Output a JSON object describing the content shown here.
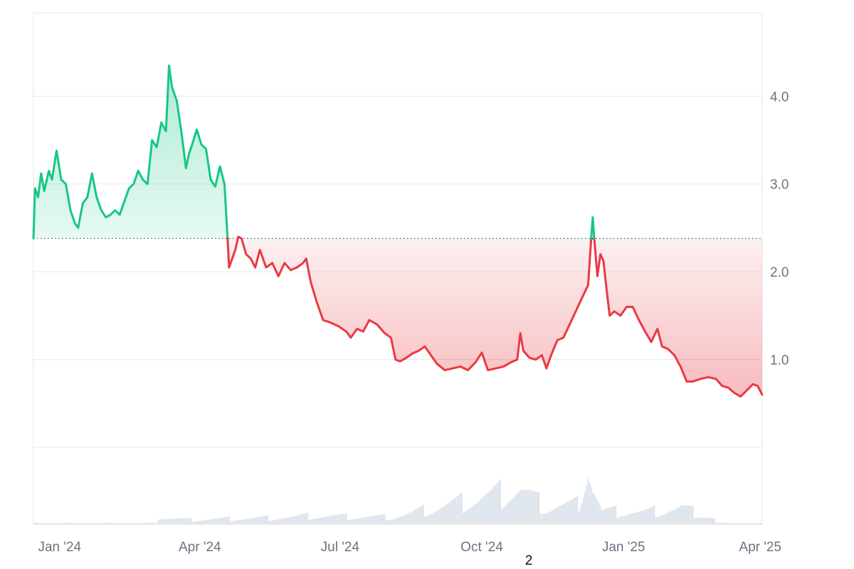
{
  "page_number": "2",
  "chart_data": {
    "type": "area",
    "baseline": 2.38,
    "ylim": [
      0,
      4.95
    ],
    "y_ticks": [
      {
        "value": 1.0,
        "label": "1.0"
      },
      {
        "value": 2.0,
        "label": "2.0"
      },
      {
        "value": 3.0,
        "label": "3.0"
      },
      {
        "value": 4.0,
        "label": "4.0"
      }
    ],
    "x_range": [
      "2023-12-15",
      "2025-04-01"
    ],
    "x_ticks": [
      {
        "date": "2024-01-01",
        "label": "Jan '24"
      },
      {
        "date": "2024-04-01",
        "label": "Apr '24"
      },
      {
        "date": "2024-07-01",
        "label": "Jul '24"
      },
      {
        "date": "2024-10-01",
        "label": "Oct '24"
      },
      {
        "date": "2025-01-01",
        "label": "Jan '25"
      },
      {
        "date": "2025-04-01",
        "label": "Apr '25"
      }
    ],
    "grid": true,
    "colors": {
      "up": "#16c784",
      "down": "#ea3943",
      "grid": "#e5e7eb",
      "volume": "#cbd5e1",
      "baseline": "#555555"
    },
    "series": [
      {
        "points": [
          [
            "2023-12-15",
            2.38
          ],
          [
            "2023-12-16",
            2.95
          ],
          [
            "2023-12-18",
            2.85
          ],
          [
            "2023-12-20",
            3.12
          ],
          [
            "2023-12-22",
            2.92
          ],
          [
            "2023-12-25",
            3.15
          ],
          [
            "2023-12-27",
            3.05
          ],
          [
            "2023-12-30",
            3.38
          ],
          [
            "2024-01-02",
            3.05
          ],
          [
            "2024-01-05",
            3.0
          ],
          [
            "2024-01-08",
            2.7
          ],
          [
            "2024-01-11",
            2.55
          ],
          [
            "2024-01-13",
            2.5
          ],
          [
            "2024-01-16",
            2.78
          ],
          [
            "2024-01-19",
            2.85
          ],
          [
            "2024-01-22",
            3.12
          ],
          [
            "2024-01-25",
            2.85
          ],
          [
            "2024-01-28",
            2.7
          ],
          [
            "2024-01-31",
            2.62
          ],
          [
            "2024-02-03",
            2.65
          ],
          [
            "2024-02-06",
            2.7
          ],
          [
            "2024-02-09",
            2.65
          ],
          [
            "2024-02-12",
            2.8
          ],
          [
            "2024-02-15",
            2.95
          ],
          [
            "2024-02-18",
            3.0
          ],
          [
            "2024-02-21",
            3.15
          ],
          [
            "2024-02-24",
            3.05
          ],
          [
            "2024-02-27",
            3.0
          ],
          [
            "2024-03-01",
            3.5
          ],
          [
            "2024-03-04",
            3.42
          ],
          [
            "2024-03-07",
            3.7
          ],
          [
            "2024-03-10",
            3.6
          ],
          [
            "2024-03-12",
            4.35
          ],
          [
            "2024-03-14",
            4.1
          ],
          [
            "2024-03-17",
            3.95
          ],
          [
            "2024-03-20",
            3.6
          ],
          [
            "2024-03-23",
            3.18
          ],
          [
            "2024-03-25",
            3.35
          ],
          [
            "2024-03-27",
            3.45
          ],
          [
            "2024-03-30",
            3.62
          ],
          [
            "2024-04-02",
            3.45
          ],
          [
            "2024-04-05",
            3.4
          ],
          [
            "2024-04-08",
            3.05
          ],
          [
            "2024-04-11",
            2.97
          ],
          [
            "2024-04-14",
            3.2
          ],
          [
            "2024-04-17",
            3.0
          ],
          [
            "2024-04-19",
            2.38
          ]
        ]
      },
      {
        "points": [
          [
            "2024-04-19",
            2.38
          ],
          [
            "2024-04-20",
            2.05
          ],
          [
            "2024-04-22",
            2.15
          ],
          [
            "2024-04-24",
            2.25
          ],
          [
            "2024-04-26",
            2.4
          ],
          [
            "2024-04-28",
            2.38
          ],
          [
            "2024-05-01",
            2.2
          ],
          [
            "2024-05-04",
            2.15
          ],
          [
            "2024-05-07",
            2.05
          ],
          [
            "2024-05-10",
            2.25
          ],
          [
            "2024-05-14",
            2.05
          ],
          [
            "2024-05-18",
            2.1
          ],
          [
            "2024-05-22",
            1.95
          ],
          [
            "2024-05-26",
            2.1
          ],
          [
            "2024-05-30",
            2.02
          ],
          [
            "2024-06-03",
            2.05
          ],
          [
            "2024-06-07",
            2.1
          ],
          [
            "2024-06-09",
            2.15
          ],
          [
            "2024-06-12",
            1.88
          ],
          [
            "2024-06-16",
            1.65
          ],
          [
            "2024-06-20",
            1.45
          ],
          [
            "2024-06-25",
            1.42
          ],
          [
            "2024-06-30",
            1.38
          ],
          [
            "2024-07-05",
            1.32
          ],
          [
            "2024-07-08",
            1.25
          ],
          [
            "2024-07-12",
            1.35
          ],
          [
            "2024-07-16",
            1.32
          ],
          [
            "2024-07-20",
            1.45
          ],
          [
            "2024-07-25",
            1.4
          ],
          [
            "2024-07-30",
            1.3
          ],
          [
            "2024-08-03",
            1.25
          ],
          [
            "2024-08-06",
            1.0
          ],
          [
            "2024-08-09",
            0.98
          ],
          [
            "2024-08-13",
            1.02
          ],
          [
            "2024-08-17",
            1.07
          ],
          [
            "2024-08-21",
            1.1
          ],
          [
            "2024-08-25",
            1.15
          ],
          [
            "2024-08-29",
            1.05
          ],
          [
            "2024-09-02",
            0.95
          ],
          [
            "2024-09-07",
            0.88
          ],
          [
            "2024-09-12",
            0.9
          ],
          [
            "2024-09-17",
            0.92
          ],
          [
            "2024-09-22",
            0.88
          ],
          [
            "2024-09-27",
            0.97
          ],
          [
            "2024-10-01",
            1.08
          ],
          [
            "2024-10-05",
            0.88
          ],
          [
            "2024-10-10",
            0.9
          ],
          [
            "2024-10-15",
            0.92
          ],
          [
            "2024-10-20",
            0.97
          ],
          [
            "2024-10-24",
            1.0
          ],
          [
            "2024-10-26",
            1.3
          ],
          [
            "2024-10-28",
            1.1
          ],
          [
            "2024-11-01",
            1.02
          ],
          [
            "2024-11-05",
            1.0
          ],
          [
            "2024-11-09",
            1.05
          ],
          [
            "2024-11-12",
            0.9
          ],
          [
            "2024-11-15",
            1.05
          ],
          [
            "2024-11-19",
            1.22
          ],
          [
            "2024-11-23",
            1.25
          ],
          [
            "2024-11-27",
            1.4
          ],
          [
            "2024-12-01",
            1.55
          ],
          [
            "2024-12-05",
            1.7
          ],
          [
            "2024-12-09",
            1.85
          ],
          [
            "2024-12-11",
            2.38
          ],
          [
            "2024-12-13",
            2.38
          ],
          [
            "2024-12-15",
            1.95
          ],
          [
            "2024-12-17",
            2.2
          ],
          [
            "2024-12-19",
            2.12
          ],
          [
            "2024-12-21",
            1.8
          ],
          [
            "2024-12-23",
            1.5
          ],
          [
            "2024-12-26",
            1.55
          ],
          [
            "2024-12-30",
            1.5
          ],
          [
            "2025-01-03",
            1.6
          ],
          [
            "2025-01-07",
            1.6
          ],
          [
            "2025-01-11",
            1.45
          ],
          [
            "2025-01-15",
            1.32
          ],
          [
            "2025-01-19",
            1.2
          ],
          [
            "2025-01-23",
            1.35
          ],
          [
            "2025-01-26",
            1.15
          ],
          [
            "2025-01-30",
            1.12
          ],
          [
            "2025-02-03",
            1.05
          ],
          [
            "2025-02-07",
            0.92
          ],
          [
            "2025-02-11",
            0.75
          ],
          [
            "2025-02-15",
            0.75
          ],
          [
            "2025-02-20",
            0.78
          ],
          [
            "2025-02-25",
            0.8
          ],
          [
            "2025-03-02",
            0.78
          ],
          [
            "2025-03-06",
            0.7
          ],
          [
            "2025-03-10",
            0.68
          ],
          [
            "2025-03-14",
            0.62
          ],
          [
            "2025-03-18",
            0.58
          ],
          [
            "2025-03-22",
            0.65
          ],
          [
            "2025-03-26",
            0.72
          ],
          [
            "2025-03-29",
            0.7
          ],
          [
            "2025-04-01",
            0.6
          ]
        ]
      },
      {
        "points": [
          [
            "2024-12-11",
            2.38
          ],
          [
            "2024-12-12",
            2.62
          ],
          [
            "2024-12-13",
            2.38
          ]
        ]
      }
    ],
    "volume_points": [
      [
        "2024-03-05",
        0.1
      ],
      [
        "2024-03-25",
        0.06
      ],
      [
        "2024-05-28",
        0.1
      ],
      [
        "2024-06-10",
        0.12
      ],
      [
        "2024-07-05",
        0.11
      ],
      [
        "2024-08-05",
        0.1
      ],
      [
        "2024-10-26",
        0.55
      ],
      [
        "2024-11-12",
        0.25
      ],
      [
        "2024-11-20",
        0.28
      ],
      [
        "2024-12-02",
        0.3
      ],
      [
        "2024-12-09",
        1.0
      ],
      [
        "2024-12-12",
        0.6
      ],
      [
        "2024-12-18",
        0.2
      ],
      [
        "2025-01-15",
        0.18
      ],
      [
        "2025-02-08",
        0.25
      ],
      [
        "2025-03-01",
        0.08
      ]
    ]
  }
}
